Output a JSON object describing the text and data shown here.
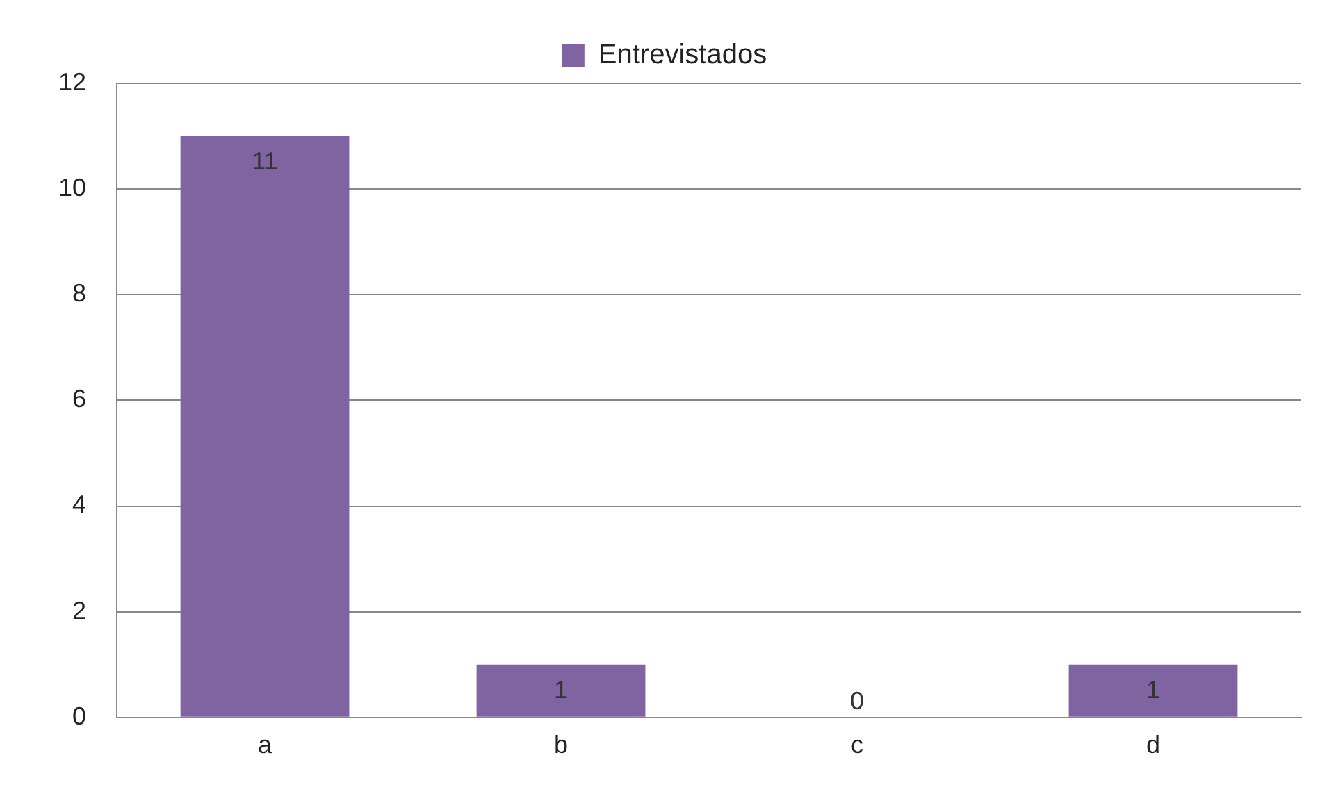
{
  "chart_data": {
    "type": "bar",
    "categories": [
      "a",
      "b",
      "c",
      "d"
    ],
    "series": [
      {
        "name": "Entrevistados",
        "color": "#8064a2",
        "values": [
          11,
          1,
          0,
          1
        ]
      }
    ],
    "ylim": [
      0,
      12
    ],
    "yticks": [
      0,
      2,
      4,
      6,
      8,
      10,
      12
    ],
    "grid": "y",
    "legend": "top",
    "data_labels": true
  }
}
